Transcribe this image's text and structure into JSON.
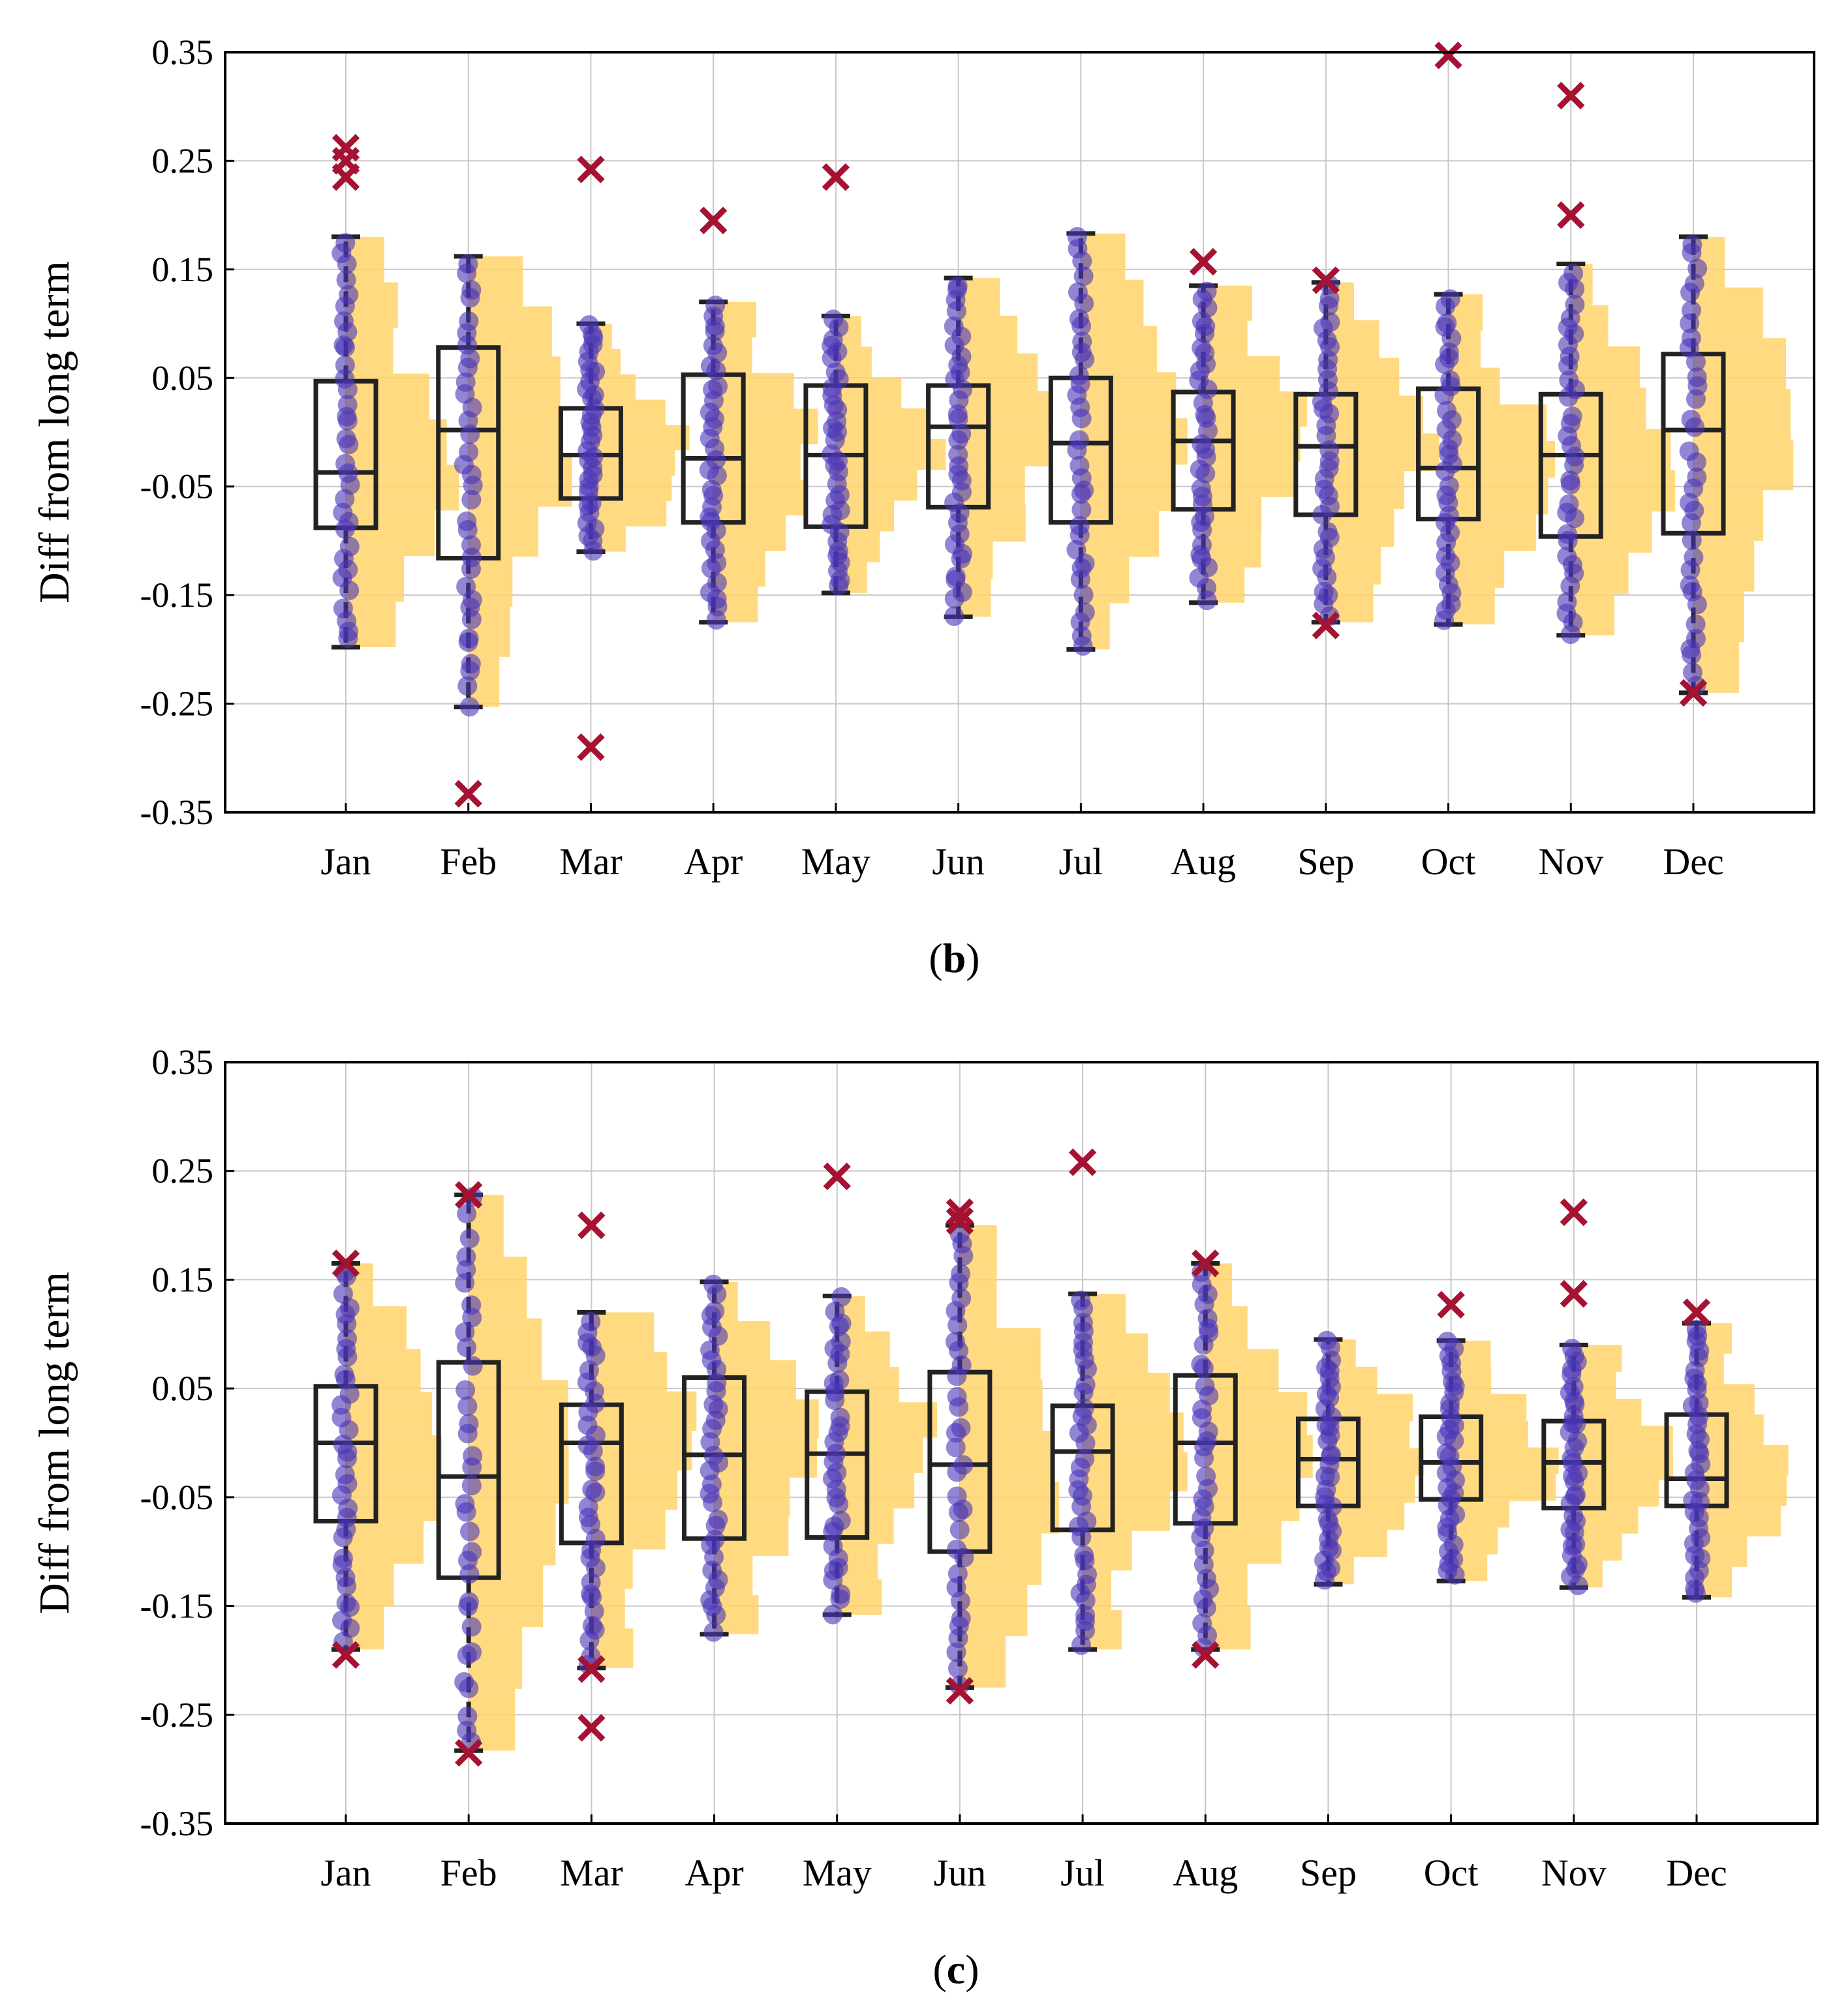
{
  "figure": {
    "colors": {
      "box": "#222222",
      "points": "#4a35b8",
      "outliers": "#a51232",
      "histogram": "#ffd36b",
      "grid": "#c8c8c8",
      "axes": "#000000"
    }
  },
  "chart_data": [
    {
      "type": "box",
      "panel": "b",
      "caption_open": "(",
      "caption_letter": "b",
      "caption_close": ")",
      "ylabel": "Diff from long term",
      "ylim": [
        -0.35,
        0.35
      ],
      "yticks": [
        "0.35",
        "0.25",
        "0.15",
        "0.05",
        "-0.05",
        "-0.15",
        "-0.25",
        "-0.35"
      ],
      "ytick_values": [
        0.35,
        0.25,
        0.15,
        0.05,
        -0.05,
        -0.15,
        -0.25,
        -0.35
      ],
      "categories": [
        "Jan",
        "Feb",
        "Mar",
        "Apr",
        "May",
        "Jun",
        "Jul",
        "Aug",
        "Sep",
        "Oct",
        "Nov",
        "Dec"
      ],
      "grid": true,
      "boxes": [
        {
          "q1": -0.088,
          "median": -0.037,
          "q3": 0.047,
          "whisker_low": -0.198,
          "whisker_high": 0.18,
          "outliers": [
            0.262,
            0.25,
            0.235
          ]
        },
        {
          "q1": -0.116,
          "median": 0.002,
          "q3": 0.078,
          "whisker_low": -0.253,
          "whisker_high": 0.162,
          "outliers": [
            -0.333
          ]
        },
        {
          "q1": -0.061,
          "median": -0.021,
          "q3": 0.022,
          "whisker_low": -0.11,
          "whisker_high": 0.1,
          "outliers": [
            0.242,
            -0.29
          ]
        },
        {
          "q1": -0.083,
          "median": -0.024,
          "q3": 0.053,
          "whisker_low": -0.175,
          "whisker_high": 0.12,
          "outliers": [
            0.195
          ]
        },
        {
          "q1": -0.087,
          "median": -0.021,
          "q3": 0.043,
          "whisker_low": -0.148,
          "whisker_high": 0.107,
          "outliers": [
            0.235
          ]
        },
        {
          "q1": -0.069,
          "median": 0.005,
          "q3": 0.043,
          "whisker_low": -0.17,
          "whisker_high": 0.142,
          "outliers": []
        },
        {
          "q1": -0.083,
          "median": -0.01,
          "q3": 0.05,
          "whisker_low": -0.2,
          "whisker_high": 0.183,
          "outliers": []
        },
        {
          "q1": -0.071,
          "median": -0.008,
          "q3": 0.037,
          "whisker_low": -0.157,
          "whisker_high": 0.135,
          "outliers": [
            0.157
          ]
        },
        {
          "q1": -0.076,
          "median": -0.013,
          "q3": 0.035,
          "whisker_low": -0.175,
          "whisker_high": 0.138,
          "outliers": [
            0.14,
            -0.178
          ]
        },
        {
          "q1": -0.08,
          "median": -0.033,
          "q3": 0.04,
          "whisker_low": -0.177,
          "whisker_high": 0.127,
          "outliers": [
            0.347
          ]
        },
        {
          "q1": -0.096,
          "median": -0.021,
          "q3": 0.035,
          "whisker_low": -0.187,
          "whisker_high": 0.155,
          "outliers": [
            0.31,
            0.2
          ]
        },
        {
          "q1": -0.093,
          "median": 0.002,
          "q3": 0.072,
          "whisker_low": -0.24,
          "whisker_high": 0.18,
          "outliers": [
            -0.24
          ]
        }
      ]
    },
    {
      "type": "box",
      "panel": "c",
      "caption_open": "(",
      "caption_letter": "c",
      "caption_close": ")",
      "ylabel": "Diff from long term",
      "ylim": [
        -0.35,
        0.35
      ],
      "yticks": [
        "0.35",
        "0.25",
        "0.15",
        "0.05",
        "-0.05",
        "-0.15",
        "-0.25",
        "-0.35"
      ],
      "ytick_values": [
        0.35,
        0.25,
        0.15,
        0.05,
        -0.05,
        -0.15,
        -0.25,
        -0.35
      ],
      "categories": [
        "Jan",
        "Feb",
        "Mar",
        "Apr",
        "May",
        "Jun",
        "Jul",
        "Aug",
        "Sep",
        "Oct",
        "Nov",
        "Dec"
      ],
      "grid": true,
      "boxes": [
        {
          "q1": -0.072,
          "median": 0.0,
          "q3": 0.052,
          "whisker_low": -0.19,
          "whisker_high": 0.165,
          "outliers": [
            0.165,
            -0.195
          ]
        },
        {
          "q1": -0.124,
          "median": -0.031,
          "q3": 0.074,
          "whisker_low": -0.283,
          "whisker_high": 0.228,
          "outliers": [
            0.228,
            -0.285
          ]
        },
        {
          "q1": -0.092,
          "median": 0.0,
          "q3": 0.035,
          "whisker_low": -0.207,
          "whisker_high": 0.12,
          "outliers": [
            0.2,
            -0.208,
            -0.262
          ]
        },
        {
          "q1": -0.088,
          "median": -0.011,
          "q3": 0.06,
          "whisker_low": -0.176,
          "whisker_high": 0.148,
          "outliers": []
        },
        {
          "q1": -0.087,
          "median": -0.01,
          "q3": 0.047,
          "whisker_low": -0.158,
          "whisker_high": 0.135,
          "outliers": [
            0.245
          ]
        },
        {
          "q1": -0.1,
          "median": -0.02,
          "q3": 0.065,
          "whisker_low": -0.225,
          "whisker_high": 0.2,
          "outliers": [
            0.212,
            0.204,
            -0.228
          ]
        },
        {
          "q1": -0.08,
          "median": -0.008,
          "q3": 0.034,
          "whisker_low": -0.19,
          "whisker_high": 0.137,
          "outliers": [
            0.258
          ]
        },
        {
          "q1": -0.074,
          "median": 0.0,
          "q3": 0.062,
          "whisker_low": -0.19,
          "whisker_high": 0.165,
          "outliers": [
            0.165,
            -0.195
          ]
        },
        {
          "q1": -0.058,
          "median": -0.015,
          "q3": 0.022,
          "whisker_low": -0.13,
          "whisker_high": 0.095,
          "outliers": []
        },
        {
          "q1": -0.052,
          "median": -0.018,
          "q3": 0.024,
          "whisker_low": -0.127,
          "whisker_high": 0.094,
          "outliers": [
            0.127
          ]
        },
        {
          "q1": -0.06,
          "median": -0.018,
          "q3": 0.02,
          "whisker_low": -0.133,
          "whisker_high": 0.09,
          "outliers": [
            0.212,
            0.137
          ]
        },
        {
          "q1": -0.058,
          "median": -0.033,
          "q3": 0.026,
          "whisker_low": -0.142,
          "whisker_high": 0.11,
          "outliers": [
            0.12
          ]
        }
      ]
    }
  ]
}
